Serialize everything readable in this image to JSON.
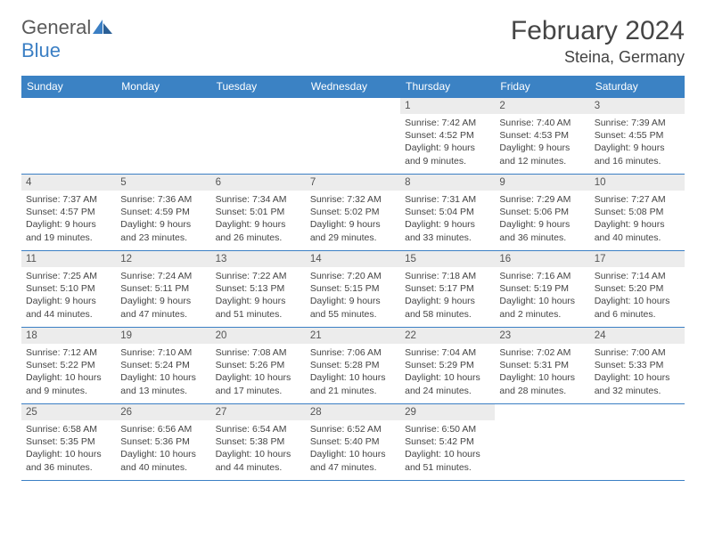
{
  "brand": {
    "part1": "General",
    "part2": "Blue"
  },
  "title": "February 2024",
  "location": "Steina, Germany",
  "colors": {
    "header_bg": "#3b82c4",
    "header_text": "#ffffff",
    "rule": "#3b7fc4",
    "daynum_bg": "#ececec",
    "body_text": "#444444",
    "accent": "#3b7fc4"
  },
  "weekdays": [
    "Sunday",
    "Monday",
    "Tuesday",
    "Wednesday",
    "Thursday",
    "Friday",
    "Saturday"
  ],
  "weeks": [
    [
      {
        "n": "",
        "sr": "",
        "ss": "",
        "dl": ""
      },
      {
        "n": "",
        "sr": "",
        "ss": "",
        "dl": ""
      },
      {
        "n": "",
        "sr": "",
        "ss": "",
        "dl": ""
      },
      {
        "n": "",
        "sr": "",
        "ss": "",
        "dl": ""
      },
      {
        "n": "1",
        "sr": "Sunrise: 7:42 AM",
        "ss": "Sunset: 4:52 PM",
        "dl": "Daylight: 9 hours and 9 minutes."
      },
      {
        "n": "2",
        "sr": "Sunrise: 7:40 AM",
        "ss": "Sunset: 4:53 PM",
        "dl": "Daylight: 9 hours and 12 minutes."
      },
      {
        "n": "3",
        "sr": "Sunrise: 7:39 AM",
        "ss": "Sunset: 4:55 PM",
        "dl": "Daylight: 9 hours and 16 minutes."
      }
    ],
    [
      {
        "n": "4",
        "sr": "Sunrise: 7:37 AM",
        "ss": "Sunset: 4:57 PM",
        "dl": "Daylight: 9 hours and 19 minutes."
      },
      {
        "n": "5",
        "sr": "Sunrise: 7:36 AM",
        "ss": "Sunset: 4:59 PM",
        "dl": "Daylight: 9 hours and 23 minutes."
      },
      {
        "n": "6",
        "sr": "Sunrise: 7:34 AM",
        "ss": "Sunset: 5:01 PM",
        "dl": "Daylight: 9 hours and 26 minutes."
      },
      {
        "n": "7",
        "sr": "Sunrise: 7:32 AM",
        "ss": "Sunset: 5:02 PM",
        "dl": "Daylight: 9 hours and 29 minutes."
      },
      {
        "n": "8",
        "sr": "Sunrise: 7:31 AM",
        "ss": "Sunset: 5:04 PM",
        "dl": "Daylight: 9 hours and 33 minutes."
      },
      {
        "n": "9",
        "sr": "Sunrise: 7:29 AM",
        "ss": "Sunset: 5:06 PM",
        "dl": "Daylight: 9 hours and 36 minutes."
      },
      {
        "n": "10",
        "sr": "Sunrise: 7:27 AM",
        "ss": "Sunset: 5:08 PM",
        "dl": "Daylight: 9 hours and 40 minutes."
      }
    ],
    [
      {
        "n": "11",
        "sr": "Sunrise: 7:25 AM",
        "ss": "Sunset: 5:10 PM",
        "dl": "Daylight: 9 hours and 44 minutes."
      },
      {
        "n": "12",
        "sr": "Sunrise: 7:24 AM",
        "ss": "Sunset: 5:11 PM",
        "dl": "Daylight: 9 hours and 47 minutes."
      },
      {
        "n": "13",
        "sr": "Sunrise: 7:22 AM",
        "ss": "Sunset: 5:13 PM",
        "dl": "Daylight: 9 hours and 51 minutes."
      },
      {
        "n": "14",
        "sr": "Sunrise: 7:20 AM",
        "ss": "Sunset: 5:15 PM",
        "dl": "Daylight: 9 hours and 55 minutes."
      },
      {
        "n": "15",
        "sr": "Sunrise: 7:18 AM",
        "ss": "Sunset: 5:17 PM",
        "dl": "Daylight: 9 hours and 58 minutes."
      },
      {
        "n": "16",
        "sr": "Sunrise: 7:16 AM",
        "ss": "Sunset: 5:19 PM",
        "dl": "Daylight: 10 hours and 2 minutes."
      },
      {
        "n": "17",
        "sr": "Sunrise: 7:14 AM",
        "ss": "Sunset: 5:20 PM",
        "dl": "Daylight: 10 hours and 6 minutes."
      }
    ],
    [
      {
        "n": "18",
        "sr": "Sunrise: 7:12 AM",
        "ss": "Sunset: 5:22 PM",
        "dl": "Daylight: 10 hours and 9 minutes."
      },
      {
        "n": "19",
        "sr": "Sunrise: 7:10 AM",
        "ss": "Sunset: 5:24 PM",
        "dl": "Daylight: 10 hours and 13 minutes."
      },
      {
        "n": "20",
        "sr": "Sunrise: 7:08 AM",
        "ss": "Sunset: 5:26 PM",
        "dl": "Daylight: 10 hours and 17 minutes."
      },
      {
        "n": "21",
        "sr": "Sunrise: 7:06 AM",
        "ss": "Sunset: 5:28 PM",
        "dl": "Daylight: 10 hours and 21 minutes."
      },
      {
        "n": "22",
        "sr": "Sunrise: 7:04 AM",
        "ss": "Sunset: 5:29 PM",
        "dl": "Daylight: 10 hours and 24 minutes."
      },
      {
        "n": "23",
        "sr": "Sunrise: 7:02 AM",
        "ss": "Sunset: 5:31 PM",
        "dl": "Daylight: 10 hours and 28 minutes."
      },
      {
        "n": "24",
        "sr": "Sunrise: 7:00 AM",
        "ss": "Sunset: 5:33 PM",
        "dl": "Daylight: 10 hours and 32 minutes."
      }
    ],
    [
      {
        "n": "25",
        "sr": "Sunrise: 6:58 AM",
        "ss": "Sunset: 5:35 PM",
        "dl": "Daylight: 10 hours and 36 minutes."
      },
      {
        "n": "26",
        "sr": "Sunrise: 6:56 AM",
        "ss": "Sunset: 5:36 PM",
        "dl": "Daylight: 10 hours and 40 minutes."
      },
      {
        "n": "27",
        "sr": "Sunrise: 6:54 AM",
        "ss": "Sunset: 5:38 PM",
        "dl": "Daylight: 10 hours and 44 minutes."
      },
      {
        "n": "28",
        "sr": "Sunrise: 6:52 AM",
        "ss": "Sunset: 5:40 PM",
        "dl": "Daylight: 10 hours and 47 minutes."
      },
      {
        "n": "29",
        "sr": "Sunrise: 6:50 AM",
        "ss": "Sunset: 5:42 PM",
        "dl": "Daylight: 10 hours and 51 minutes."
      },
      {
        "n": "",
        "sr": "",
        "ss": "",
        "dl": ""
      },
      {
        "n": "",
        "sr": "",
        "ss": "",
        "dl": ""
      }
    ]
  ]
}
